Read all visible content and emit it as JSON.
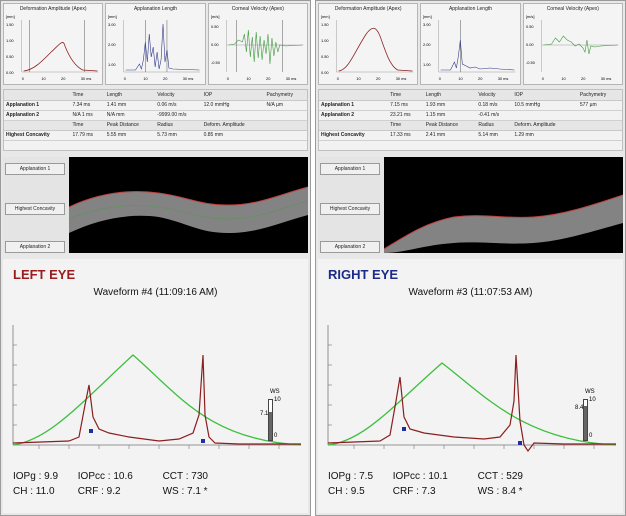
{
  "left": {
    "minis": [
      {
        "title": "Deformation Amplitude (Apex)",
        "unit": "[mm]",
        "yticks": [
          "1.50",
          "1.00",
          "0.50",
          "0.00"
        ],
        "xticks": [
          "0",
          "10",
          "20",
          "30 ms"
        ]
      },
      {
        "title": "Applanation Length",
        "unit": "[mm]",
        "yticks": [
          "3.00",
          "2.00",
          "1.00"
        ],
        "xticks": [
          "0",
          "10",
          "20",
          "30 ms"
        ]
      },
      {
        "title": "Corneal Velocity (Apex)",
        "unit": "[m/s]",
        "yticks": [
          "0.50",
          "0.00",
          "-0.50"
        ],
        "xticks": [
          "0",
          "10",
          "20",
          "30 ms"
        ]
      }
    ],
    "table": {
      "hdr1": [
        "",
        "Time",
        "Length",
        "Velocity",
        "IOP",
        "Pachymetry"
      ],
      "row1": [
        "Applanation 1",
        "7.34 ms",
        "1.41 mm",
        "0.06 m/s",
        "12.0 mmHg",
        "N/A µm"
      ],
      "row2": [
        "Applanation 2",
        "N/A 1 ms",
        "N/A mm",
        "-9999.00 m/s",
        "",
        ""
      ],
      "hdr2": [
        "",
        "Time",
        "Peak Distance",
        "Radius",
        "Deform. Amplitude",
        ""
      ],
      "row3": [
        "Highest Concavity",
        "17.79 ms",
        "5.55 mm",
        "5.73 mm",
        "0.85 mm",
        ""
      ]
    },
    "buttons": [
      "Applanation 1",
      "Highest Concavity",
      "Applanation 2"
    ],
    "eye": "LEFT EYE",
    "eye_color": "#9b1c1c",
    "waveform": "Waveform #4 (11:09:16 AM)",
    "ws": {
      "top": "10",
      "bottom": "0",
      "value": "7.1",
      "label": "WS"
    },
    "readout": {
      "l1": "IOPg : 9.9",
      "l2": "IOPcc : 10.6",
      "l3": "CCT : 730",
      "l4": "CH : 11.0",
      "l5": "CRF : 9.2",
      "l6": "WS : 7.1 *"
    }
  },
  "right": {
    "minis": [
      {
        "title": "Deformation Amplitude (Apex)",
        "unit": "[mm]",
        "yticks": [
          "1.50",
          "1.00",
          "0.50",
          "0.00"
        ],
        "xticks": [
          "0",
          "10",
          "20",
          "30 ms"
        ]
      },
      {
        "title": "Applanation Length",
        "unit": "[mm]",
        "yticks": [
          "3.00",
          "2.00",
          "1.00"
        ],
        "xticks": [
          "0",
          "10",
          "20",
          "30 ms"
        ]
      },
      {
        "title": "Corneal Velocity (Apex)",
        "unit": "[m/s]",
        "yticks": [
          "0.50",
          "0.00",
          "-0.50"
        ],
        "xticks": [
          "0",
          "10",
          "20",
          "30 ms"
        ]
      }
    ],
    "table": {
      "hdr1": [
        "",
        "Time",
        "Length",
        "Velocity",
        "IOP",
        "Pachymetry"
      ],
      "row1": [
        "Applanation 1",
        "7.15 ms",
        "1.93 mm",
        "0.18 m/s",
        "10.5 mmHg",
        "577 µm"
      ],
      "row2": [
        "Applanation 2",
        "23.21 ms",
        "1.15 mm",
        "-0.41 m/s",
        "",
        ""
      ],
      "hdr2": [
        "",
        "Time",
        "Peak Distance",
        "Radius",
        "Deform. Amplitude",
        ""
      ],
      "row3": [
        "Highest Concavity",
        "17.33 ms",
        "2.41 mm",
        "5.14 mm",
        "1.29 mm",
        ""
      ]
    },
    "buttons": [
      "Applanation 1",
      "Highest Concavity",
      "Applanation 2"
    ],
    "eye": "RIGHT EYE",
    "eye_color": "#1c2a8a",
    "waveform": "Waveform #3 (11:07:53 AM)",
    "ws": {
      "top": "10",
      "bottom": "0",
      "value": "8.4",
      "label": "WS"
    },
    "readout": {
      "l1": "IOPg : 7.5",
      "l2": "IOPcc : 10.1",
      "l3": "CCT : 529",
      "l4": "CH : 9.5",
      "l5": "CRF : 7.3",
      "l6": "WS : 8.4 *"
    }
  }
}
